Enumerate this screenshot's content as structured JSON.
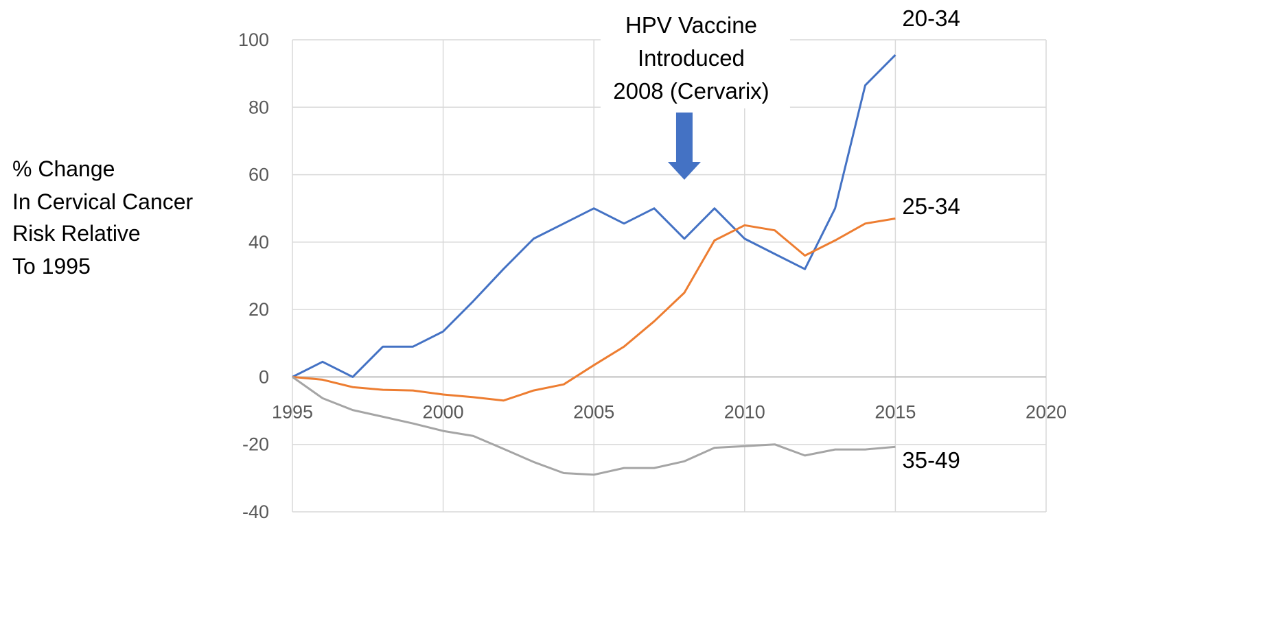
{
  "chart_data": {
    "type": "line",
    "ylabel_lines": [
      "% Change",
      "In Cervical Cancer",
      "Risk Relative",
      "To 1995"
    ],
    "xlim": [
      1995,
      2020
    ],
    "ylim": [
      -40,
      100
    ],
    "x_ticks": [
      1995,
      2000,
      2005,
      2010,
      2015,
      2020
    ],
    "y_ticks": [
      -40,
      -20,
      0,
      20,
      40,
      60,
      80,
      100
    ],
    "grid": true,
    "x": [
      1995,
      1996,
      1997,
      1998,
      1999,
      2000,
      2001,
      2002,
      2003,
      2004,
      2005,
      2006,
      2007,
      2008,
      2009,
      2010,
      2011,
      2012,
      2013,
      2014,
      2015
    ],
    "series": [
      {
        "name": "20-34",
        "color": "#4472C4",
        "values": [
          0,
          4.5,
          0,
          9,
          9,
          13.5,
          22.5,
          32,
          41,
          45.5,
          50,
          45.5,
          50,
          41,
          50,
          41,
          36.5,
          32,
          50,
          86.5,
          95.5
        ]
      },
      {
        "name": "25-34",
        "color": "#ED7D31",
        "values": [
          0,
          -0.8,
          -3,
          -3.8,
          -4,
          -5.2,
          -6,
          -7,
          -4,
          -2.2,
          3.5,
          9,
          16.5,
          25,
          40.5,
          45,
          43.5,
          36,
          40.5,
          45.5,
          47
        ]
      },
      {
        "name": "35-49",
        "color": "#A5A5A5",
        "values": [
          0,
          -6.3,
          -9.8,
          -11.8,
          -13.8,
          -16,
          -17.5,
          -21.3,
          -25.2,
          -28.5,
          -29,
          -27,
          -27,
          -25,
          -21,
          -20.5,
          -20,
          -23.3,
          -21.5,
          -21.5,
          -20.7
        ]
      }
    ],
    "annotation": {
      "lines": [
        "HPV Vaccine",
        "Introduced",
        "2008 (Cervarix)"
      ],
      "x": 2008,
      "arrow_color": "#4472C4"
    }
  }
}
